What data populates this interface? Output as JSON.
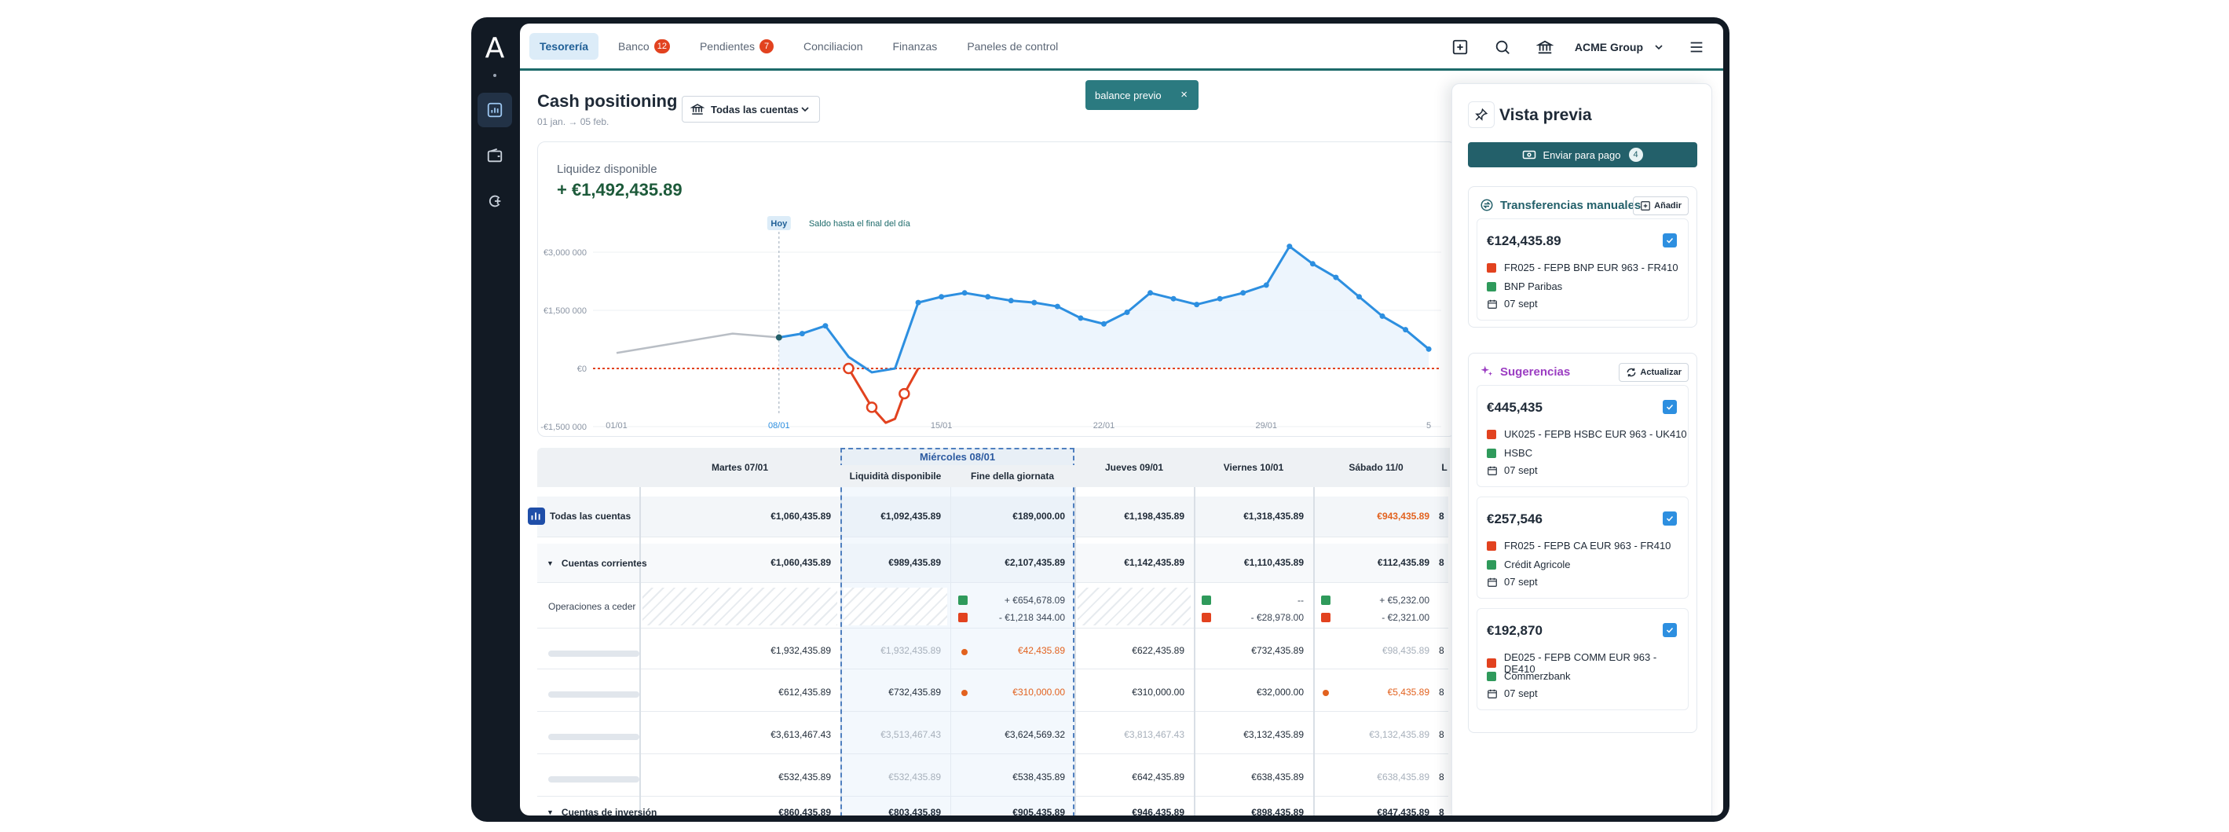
{
  "rail": {
    "logo": "A",
    "icons": [
      "chart-bar-icon",
      "wallet-icon",
      "connect-icon"
    ]
  },
  "topbar": {
    "tabs": [
      {
        "label": "Tesorería",
        "active": true
      },
      {
        "label": "Banco",
        "badge": "12"
      },
      {
        "label": "Pendientes",
        "badge": "7"
      },
      {
        "label": "Conciliacion"
      },
      {
        "label": "Finanzas"
      },
      {
        "label": "Paneles de control"
      }
    ],
    "group": "ACME Group"
  },
  "toast": {
    "label": "balance previo",
    "close": "×"
  },
  "header": {
    "title": "Cash positioning",
    "subtitle": "01 jan. → 05 feb.",
    "account_select": "Todas las cuentas"
  },
  "chart": {
    "label": "Liquidez disponible",
    "value": "+ €1,492,435.89",
    "today_label": "Hoy",
    "end_label": "Saldo hasta el final del día"
  },
  "chart_data": {
    "type": "line",
    "y_tick_labels": [
      "€3,000 000",
      "€1,500 000",
      "€0",
      "-€1,500 000"
    ],
    "y_ticks": [
      3000000,
      1500000,
      0,
      -1500000
    ],
    "x_tick_labels": [
      "01/01",
      "08/01",
      "15/01",
      "22/01",
      "29/01",
      "5"
    ],
    "ylim": [
      -1500000,
      3000000
    ],
    "grid": true,
    "series": [
      {
        "role": "historic",
        "color": "#b9bec5",
        "points": [
          [
            1,
            400000
          ],
          [
            4,
            700000
          ],
          [
            6,
            900000
          ],
          [
            8,
            800000
          ]
        ]
      },
      {
        "role": "forecast",
        "color": "#2d8fe0",
        "points": [
          [
            8,
            800000
          ],
          [
            9,
            900000
          ],
          [
            10,
            1100000
          ],
          [
            11,
            300000
          ],
          [
            12,
            -100000
          ],
          [
            13,
            0
          ],
          [
            14,
            1700000
          ],
          [
            15,
            1850000
          ],
          [
            16,
            1950000
          ],
          [
            17,
            1850000
          ],
          [
            18,
            1750000
          ],
          [
            19,
            1700000
          ],
          [
            20,
            1600000
          ],
          [
            21,
            1300000
          ],
          [
            22,
            1150000
          ],
          [
            23,
            1450000
          ],
          [
            24,
            1950000
          ],
          [
            25,
            1800000
          ],
          [
            26,
            1650000
          ],
          [
            27,
            1800000
          ],
          [
            28,
            1950000
          ],
          [
            29,
            2150000
          ],
          [
            30,
            3150000
          ],
          [
            31,
            2700000
          ],
          [
            32,
            2350000
          ],
          [
            33,
            1850000
          ],
          [
            34,
            1350000
          ],
          [
            35,
            1000000
          ],
          [
            36,
            500000
          ]
        ]
      },
      {
        "role": "negative",
        "color": "#e2421f",
        "points": [
          [
            11,
            0
          ],
          [
            12,
            -1000000
          ],
          [
            12.6,
            -1400000
          ],
          [
            13,
            -1300000
          ],
          [
            13.4,
            -650000
          ],
          [
            14,
            0
          ]
        ]
      }
    ],
    "zero_line_color": "#e2421f"
  },
  "table": {
    "columns": [
      "",
      "Martes 07/01",
      "Liquidità disponibile",
      "Fine della giornata",
      "Jueves 09/01",
      "Viernes 10/01",
      "Sábado 11/0",
      "L"
    ],
    "wed_title": "Miércoles 08/01",
    "rows": [
      {
        "label": "Todas las cuentas",
        "values": [
          "€1,060,435.89",
          "€1,092,435.89",
          "€189,000.00",
          "€1,198,435.89",
          "€1,318,435.89",
          "€943,435.89",
          "8"
        ]
      },
      {
        "label": "Cuentas corrientes",
        "values": [
          "€1,060,435.89",
          "€989,435.89",
          "€2,107,435.89",
          "€1,142,435.89",
          "€1,110,435.89",
          "€112,435.89",
          "8"
        ]
      },
      {
        "label": "Operaciones a ceder",
        "fine_in": "+ €654,678.09",
        "fine_out": "- €1,218 344.00",
        "vie_in": "--",
        "vie_out": "- €28,978.00",
        "sab_in": "+ €5,232.00",
        "sab_out": "- €2,321.00"
      },
      {
        "values": [
          "€1,932,435.89",
          "€1,932,435.89",
          "€42,435.89",
          "€622,435.89",
          "€732,435.89",
          "€98,435.89",
          "8"
        ]
      },
      {
        "values": [
          "€612,435.89",
          "€732,435.89",
          "€310,000.00",
          "€310,000.00",
          "€32,000.00",
          "€5,435.89",
          "8"
        ]
      },
      {
        "values": [
          "€3,613,467.43",
          "€3,513,467.43",
          "€3,624,569.32",
          "€3,813,467.43",
          "€3,132,435.89",
          "€3,132,435.89",
          "8"
        ]
      },
      {
        "values": [
          "€532,435.89",
          "€532,435.89",
          "€538,435.89",
          "€642,435.89",
          "€638,435.89",
          "€638,435.89",
          "8"
        ]
      },
      {
        "label": "Cuentas de inversión",
        "values": [
          "€860,435.89",
          "€803,435.89",
          "€905,435.89",
          "€946,435.89",
          "€898,435.89",
          "€847,435.89",
          "8"
        ]
      }
    ]
  },
  "panel": {
    "title": "Vista previa",
    "send_label": "Enviar para pago",
    "send_count": "4",
    "manual": {
      "title": "Transferencias manuales",
      "button": "Añadir",
      "items": [
        {
          "amount": "€124,435.89",
          "ref": "FR025 - FEPB BNP EUR 963 - FR410",
          "bank": "BNP Paribas",
          "date": "07 sept"
        }
      ]
    },
    "suggestions": {
      "title": "Sugerencias",
      "button": "Actualizar",
      "items": [
        {
          "amount": "€445,435",
          "ref": "UK025 - FEPB HSBC EUR 963 - UK410",
          "bank": "HSBC",
          "date": "07 sept"
        },
        {
          "amount": "€257,546",
          "ref": "FR025 - FEPB CA EUR 963 - FR410",
          "bank": "Crédit Agricole",
          "date": "07 sept"
        },
        {
          "amount": "€192,870",
          "ref": "DE025 - FEPB COMM EUR 963 - DE410",
          "bank": "Commerzbank",
          "date": "07 sept"
        }
      ]
    }
  }
}
